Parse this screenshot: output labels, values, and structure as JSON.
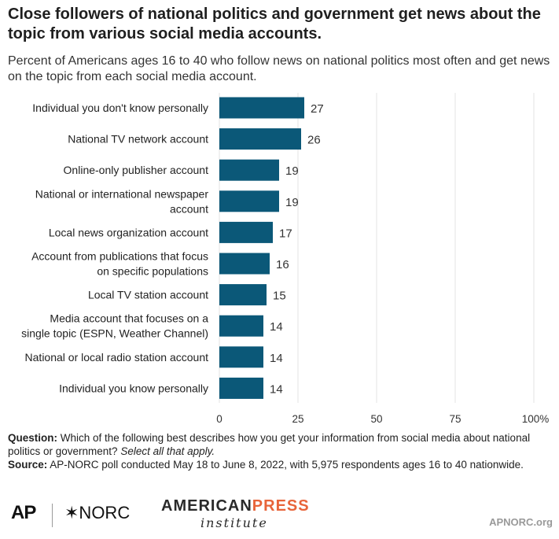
{
  "header": {
    "title": "Close followers of national politics and government get news about the topic from various social media accounts.",
    "subtitle": "Percent of Americans ages 16 to 40 who follow news on national politics most often and get news on the topic from each social media account."
  },
  "chart_data": {
    "type": "bar",
    "orientation": "horizontal",
    "categories": [
      [
        "Individual you don't know personally"
      ],
      [
        "National TV network account"
      ],
      [
        "Online-only publisher account"
      ],
      [
        "National or international newspaper",
        "account"
      ],
      [
        "Local news organization account"
      ],
      [
        "Account from publications that focus",
        "on specific populations"
      ],
      [
        "Local TV station account"
      ],
      [
        "Media account that focuses on a",
        "single topic (ESPN, Weather Channel)"
      ],
      [
        "National or local radio station account"
      ],
      [
        "Individual you know personally"
      ]
    ],
    "values": [
      27,
      26,
      19,
      19,
      17,
      16,
      15,
      14,
      14,
      14
    ],
    "xlim": [
      0,
      100
    ],
    "xticks": [
      "0",
      "25",
      "50",
      "75",
      "100%"
    ],
    "grid": true,
    "bar_color": "#0b5878"
  },
  "footer": {
    "question_label": "Question:",
    "question_text": "Which of the following best describes how you get your information from social media about national politics or government?",
    "question_emphasis": "Select all that apply.",
    "source_label": "Source:",
    "source_text": "AP-NORC poll conducted May 18 to June 8, 2022, with 5,975 respondents ages 16 to 40 nationwide."
  },
  "logos": {
    "ap": "AP",
    "norc": "✶NORC",
    "api_top_a": "AMERICAN",
    "api_top_b": "PRESS",
    "api_bottom": "institute",
    "site": "APNORC.org"
  }
}
